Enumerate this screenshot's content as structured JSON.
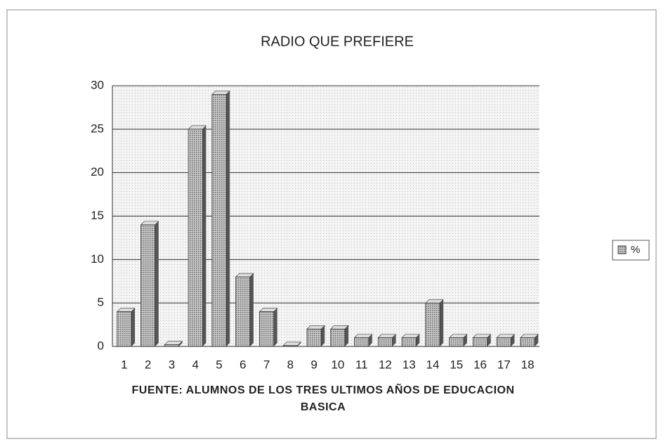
{
  "chart_data": {
    "type": "bar",
    "title": "RADIO QUE PREFIERE",
    "x_label": "FUENTE: ALUMNOS DE LOS TRES ULTIMOS AÑOS DE EDUCACION BASICA",
    "categories": [
      "1",
      "2",
      "3",
      "4",
      "5",
      "6",
      "7",
      "8",
      "9",
      "10",
      "11",
      "12",
      "13",
      "14",
      "15",
      "16",
      "17",
      "18"
    ],
    "series": [
      {
        "name": "%",
        "color": "#9a9a9a",
        "values": [
          4,
          14,
          0.2,
          25,
          29,
          8,
          4,
          0.1,
          2,
          2,
          1,
          1,
          1,
          5,
          1,
          1,
          1,
          1
        ]
      }
    ],
    "ylim": [
      0,
      30
    ],
    "yticks": [
      0,
      5,
      10,
      15,
      20,
      25,
      30
    ],
    "grid": true,
    "legend": "right"
  }
}
